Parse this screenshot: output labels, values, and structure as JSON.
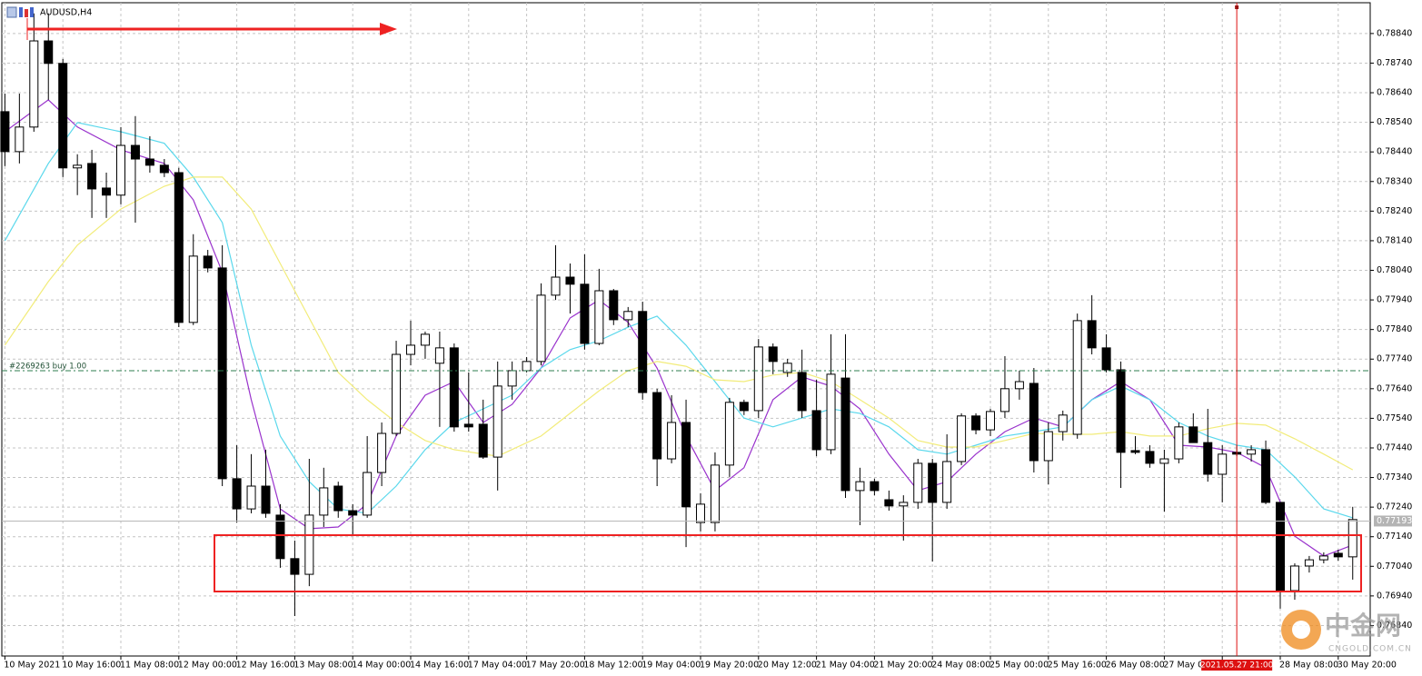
{
  "chart_data": {
    "type": "candlestick",
    "title": "AUDUSD,H4",
    "categories": [
      "10 May 2021",
      null,
      null,
      null,
      "10 May 16:00",
      null,
      null,
      null,
      "11 May 08:00",
      null,
      null,
      null,
      "12 May 00:00",
      null,
      null,
      null,
      "12 May 16:00",
      null,
      null,
      null,
      "13 May 08:00",
      null,
      null,
      null,
      "14 May 00:00",
      null,
      null,
      null,
      "14 May 16:00",
      null,
      null,
      null,
      "17 May 04:00",
      null,
      null,
      null,
      "17 May 20:00",
      null,
      null,
      null,
      "18 May 12:00",
      null,
      null,
      null,
      "19 May 04:00",
      null,
      null,
      null,
      "19 May 20:00",
      null,
      null,
      null,
      "20 May 12:00",
      null,
      null,
      null,
      "21 May 04:00",
      null,
      null,
      null,
      "21 May 20:00",
      null,
      null,
      null,
      "24 May 08:00",
      null,
      null,
      null,
      "25 May 00:00",
      null,
      null,
      null,
      "25 May 16:00",
      null,
      null,
      null,
      "26 May 08:00",
      null,
      null,
      null,
      "27 May 00:00",
      null,
      null,
      null,
      null,
      null,
      null,
      null,
      "28 May 08:00",
      null,
      null,
      null,
      "30 May 20:00",
      null
    ],
    "open": [
      0.78576,
      0.78441,
      0.78524,
      0.78815,
      0.78739,
      0.78386,
      0.78401,
      0.78318,
      0.78294,
      0.78462,
      0.78416,
      0.78395,
      0.7837,
      0.77864,
      0.78088,
      0.78048,
      0.77336,
      0.77234,
      0.77311,
      0.77213,
      0.77066,
      0.77013,
      0.77213,
      0.77311,
      0.77228,
      0.77213,
      0.77357,
      0.77489,
      0.77756,
      0.77787,
      0.77726,
      0.77778,
      0.7752,
      0.7752,
      0.77409,
      0.77649,
      0.77701,
      0.77732,
      0.77956,
      0.78017,
      0.77993,
      0.77793,
      0.77971,
      0.77873,
      0.77901,
      0.77627,
      0.77403,
      0.77526,
      0.77188,
      0.77188,
      0.77382,
      0.77594,
      0.77566,
      0.77781,
      0.77695,
      0.77695,
      0.77566,
      0.77434,
      0.77676,
      0.77296,
      0.77326,
      0.77265,
      0.77244,
      0.77256,
      0.77388,
      0.77256,
      0.77394,
      0.77548,
      0.77501,
      0.77563,
      0.7764,
      0.77658,
      0.77397,
      0.77495,
      0.77486,
      0.7787,
      0.77778,
      0.77704,
      0.77431,
      0.77428,
      0.77388,
      0.77403,
      0.77511,
      0.77458,
      0.77351,
      0.77425,
      0.77419,
      0.77434,
      0.77256,
      0.76958,
      0.77041,
      0.77062,
      0.77084,
      0.77072
    ],
    "high": [
      0.78637,
      0.78637,
      0.78908,
      0.78908,
      0.78754,
      0.78432,
      0.78447,
      0.7837,
      0.78524,
      0.78561,
      0.78493,
      0.78416,
      0.78386,
      0.78162,
      0.78109,
      0.78125,
      0.77449,
      0.77419,
      0.77434,
      0.7725,
      0.77127,
      0.77403,
      0.77373,
      0.77326,
      0.7725,
      0.7748,
      0.77526,
      0.77802,
      0.7787,
      0.77833,
      0.77833,
      0.77793,
      0.77695,
      0.77603,
      0.77732,
      0.77732,
      0.77747,
      0.77996,
      0.78125,
      0.78063,
      0.78094,
      0.78045,
      0.77977,
      0.77916,
      0.77934,
      0.7764,
      0.77618,
      0.77603,
      0.77287,
      0.77425,
      0.77609,
      0.77603,
      0.77808,
      0.77793,
      0.77741,
      0.77772,
      0.7767,
      0.77824,
      0.77824,
      0.77373,
      0.77336,
      0.77296,
      0.7728,
      0.77403,
      0.77403,
      0.77486,
      0.77557,
      0.77557,
      0.77572,
      0.7775,
      0.77701,
      0.7771,
      0.77526,
      0.77566,
      0.77894,
      0.77956,
      0.77824,
      0.77732,
      0.7748,
      0.77449,
      0.77434,
      0.77526,
      0.77557,
      0.77572,
      0.77449,
      0.77449,
      0.77449,
      0.77465,
      0.77256,
      0.7705,
      0.77075,
      0.77087,
      0.77096,
      0.77241
    ],
    "low": [
      0.78392,
      0.78401,
      0.78508,
      0.78616,
      0.78355,
      0.78294,
      0.78217,
      0.78217,
      0.78263,
      0.78201,
      0.7837,
      0.78355,
      0.77848,
      0.77855,
      0.78033,
      0.77311,
      0.77188,
      0.77219,
      0.77204,
      0.77035,
      0.76872,
      0.76973,
      0.77173,
      0.77204,
      0.77142,
      0.77204,
      0.77311,
      0.7748,
      0.77719,
      0.77741,
      0.77511,
      0.77495,
      0.77495,
      0.77403,
      0.77296,
      0.77603,
      0.77695,
      0.77719,
      0.7794,
      0.77894,
      0.77772,
      0.77787,
      0.77855,
      0.77848,
      0.77603,
      0.77311,
      0.77388,
      0.77105,
      0.77158,
      0.77158,
      0.77342,
      0.77551,
      0.77541,
      0.77689,
      0.7768,
      0.77541,
      0.77412,
      0.77419,
      0.77271,
      0.77179,
      0.7728,
      0.77228,
      0.77127,
      0.77234,
      0.77056,
      0.77234,
      0.77382,
      0.77486,
      0.7748,
      0.77541,
      0.77603,
      0.77357,
      0.77317,
      0.77465,
      0.77471,
      0.77756,
      0.77695,
      0.77305,
      0.77419,
      0.77373,
      0.77225,
      0.77388,
      0.77458,
      0.77326,
      0.77256,
      0.77412,
      0.77394,
      0.7725,
      0.76897,
      0.76927,
      0.77019,
      0.7705,
      0.77059,
      0.76995
    ],
    "close": [
      0.78441,
      0.78524,
      0.78815,
      0.78739,
      0.78386,
      0.78395,
      0.78315,
      0.78294,
      0.78462,
      0.78416,
      0.78395,
      0.7837,
      0.77864,
      0.78088,
      0.78048,
      0.77336,
      0.77234,
      0.77311,
      0.77219,
      0.77066,
      0.77013,
      0.77213,
      0.77305,
      0.77228,
      0.77213,
      0.77357,
      0.77489,
      0.77756,
      0.77787,
      0.77824,
      0.77778,
      0.77511,
      0.77511,
      0.77409,
      0.77649,
      0.77701,
      0.77732,
      0.77956,
      0.78017,
      0.77993,
      0.77793,
      0.77971,
      0.77873,
      0.77901,
      0.77627,
      0.77403,
      0.77526,
      0.77241,
      0.7725,
      0.77382,
      0.77594,
      0.77566,
      0.77781,
      0.77732,
      0.77726,
      0.77566,
      0.77434,
      0.77689,
      0.77296,
      0.77326,
      0.77296,
      0.77244,
      0.77256,
      0.77388,
      0.77256,
      0.77394,
      0.77548,
      0.77501,
      0.77563,
      0.7764,
      0.77664,
      0.77397,
      0.77495,
      0.77551,
      0.7787,
      0.77778,
      0.77704,
      0.77425,
      0.77425,
      0.77388,
      0.77403,
      0.77511,
      0.77458,
      0.77351,
      0.77419,
      0.77419,
      0.77434,
      0.77256,
      0.76958,
      0.77041,
      0.77062,
      0.77075,
      0.77072,
      0.77198
    ],
    "up_color": "#ffffff",
    "down_color": "#000000",
    "lines": [
      {
        "color": "#9932cc",
        "x": [
          0,
          3,
          5,
          8,
          11,
          13,
          15,
          17,
          19,
          21,
          23,
          25,
          27,
          29,
          31,
          33,
          35,
          37,
          39,
          41,
          43,
          45,
          47,
          49,
          51,
          53,
          55,
          57,
          59,
          61,
          63,
          65,
          67,
          69,
          71,
          73,
          75,
          77,
          79,
          81,
          83,
          85,
          87,
          89,
          91,
          93
        ],
        "values": [
          0.78508,
          0.78616,
          0.78524,
          0.78447,
          0.78401,
          0.78278,
          0.78033,
          0.77603,
          0.77234,
          0.77167,
          0.77173,
          0.7725,
          0.7748,
          0.77618,
          0.77664,
          0.77526,
          0.77587,
          0.7771,
          0.77879,
          0.7794,
          0.77864,
          0.7771,
          0.7748,
          0.77296,
          0.77373,
          0.77603,
          0.7768,
          0.77649,
          0.77572,
          0.77419,
          0.77296,
          0.77326,
          0.77419,
          0.77495,
          0.77541,
          0.77511,
          0.77603,
          0.77664,
          0.77603,
          0.77449,
          0.77443,
          0.77425,
          0.77373,
          0.77142,
          0.77075,
          0.77112
        ]
      },
      {
        "color": "#5ad8ec",
        "x": [
          0,
          3,
          5,
          8,
          11,
          13,
          15,
          17,
          19,
          21,
          23,
          25,
          27,
          29,
          31,
          33,
          35,
          37,
          39,
          41,
          43,
          45,
          47,
          49,
          51,
          53,
          55,
          57,
          59,
          61,
          63,
          65,
          67,
          69,
          71,
          73,
          75,
          77,
          79,
          81,
          83,
          85,
          87,
          89,
          91,
          93
        ],
        "values": [
          0.7814,
          0.78401,
          0.78539,
          0.78508,
          0.78469,
          0.78355,
          0.78201,
          0.77787,
          0.7748,
          0.77326,
          0.77234,
          0.77219,
          0.77311,
          0.77434,
          0.77526,
          0.77572,
          0.77618,
          0.7771,
          0.77772,
          0.77802,
          0.77848,
          0.77885,
          0.77787,
          0.77664,
          0.77541,
          0.77511,
          0.77541,
          0.77572,
          0.77557,
          0.77511,
          0.77434,
          0.77419,
          0.77449,
          0.7748,
          0.77495,
          0.77511,
          0.77603,
          0.77649,
          0.77603,
          0.77526,
          0.7748,
          0.77449,
          0.77434,
          0.77342,
          0.77234,
          0.77204
        ]
      },
      {
        "color": "#f2ec7a",
        "x": [
          0,
          3,
          5,
          8,
          11,
          13,
          15,
          17,
          19,
          21,
          23,
          25,
          27,
          29,
          31,
          34,
          37,
          39,
          41,
          43,
          45,
          47,
          49,
          51,
          53,
          55,
          57,
          59,
          61,
          63,
          65,
          67,
          69,
          71,
          73,
          75,
          77,
          79,
          81,
          83,
          85,
          87,
          89,
          91,
          93
        ],
        "values": [
          0.77787,
          0.78002,
          0.78125,
          0.78247,
          0.78324,
          0.78355,
          0.78355,
          0.78247,
          0.78063,
          0.77879,
          0.77695,
          0.77603,
          0.77526,
          0.77465,
          0.77434,
          0.77412,
          0.7748,
          0.77557,
          0.77633,
          0.77701,
          0.77732,
          0.77716,
          0.7767,
          0.77664,
          0.77686,
          0.77695,
          0.77664,
          0.77603,
          0.77541,
          0.77465,
          0.77443,
          0.77443,
          0.77465,
          0.77489,
          0.77486,
          0.77486,
          0.77495,
          0.7748,
          0.7748,
          0.77505,
          0.77523,
          0.77517,
          0.77471,
          0.77419,
          0.77366
        ]
      }
    ],
    "ylim": [
      0.76737,
      0.78944
    ],
    "yticks": [
      {
        "value": 0.7884,
        "label": "0.78840"
      },
      {
        "value": 0.7874,
        "label": "0.78740"
      },
      {
        "value": 0.7864,
        "label": "0.78640"
      },
      {
        "value": 0.7854,
        "label": "0.78540"
      },
      {
        "value": 0.7844,
        "label": "0.78440"
      },
      {
        "value": 0.7834,
        "label": "0.78340"
      },
      {
        "value": 0.7824,
        "label": "0.78240"
      },
      {
        "value": 0.7814,
        "label": "0.78140"
      },
      {
        "value": 0.7804,
        "label": "0.78040"
      },
      {
        "value": 0.7794,
        "label": "0.77940"
      },
      {
        "value": 0.7784,
        "label": "0.77840"
      },
      {
        "value": 0.7774,
        "label": "0.77740"
      },
      {
        "value": 0.7764,
        "label": "0.77640"
      },
      {
        "value": 0.7754,
        "label": "0.77540"
      },
      {
        "value": 0.7744,
        "label": "0.77440"
      },
      {
        "value": 0.7734,
        "label": "0.77340"
      },
      {
        "value": 0.7724,
        "label": "0.77240"
      },
      {
        "value": 0.7714,
        "label": "0.77140"
      },
      {
        "value": 0.7704,
        "label": "0.77040"
      },
      {
        "value": 0.7694,
        "label": "0.76940"
      },
      {
        "value": 0.7684,
        "label": "0.76840"
      }
    ],
    "grid": true,
    "current_price": {
      "value": 0.77193,
      "label": "0.77193"
    },
    "order": {
      "value": 0.77701,
      "label": "#2269263 buy 1.00"
    },
    "cursor": {
      "index": 85,
      "label": "2021.05.27 21:00"
    },
    "watermark": {
      "name": "中金网",
      "site": "CNGOLD.COM.CN"
    }
  }
}
